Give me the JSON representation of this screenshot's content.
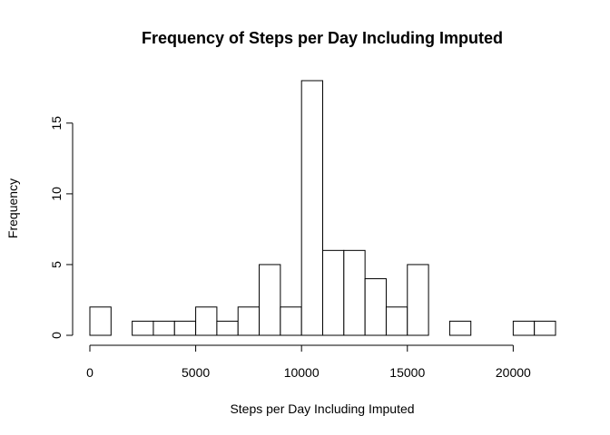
{
  "chart_data": {
    "type": "bar",
    "title": "Frequency of Steps per Day Including Imputed",
    "xlabel": "Steps per Day Including Imputed",
    "ylabel": "Frequency",
    "bin_width": 1000,
    "bins": [
      {
        "start": 0,
        "end": 1000,
        "count": 2
      },
      {
        "start": 1000,
        "end": 2000,
        "count": 0
      },
      {
        "start": 2000,
        "end": 3000,
        "count": 1
      },
      {
        "start": 3000,
        "end": 4000,
        "count": 1
      },
      {
        "start": 4000,
        "end": 5000,
        "count": 1
      },
      {
        "start": 5000,
        "end": 6000,
        "count": 2
      },
      {
        "start": 6000,
        "end": 7000,
        "count": 1
      },
      {
        "start": 7000,
        "end": 8000,
        "count": 2
      },
      {
        "start": 8000,
        "end": 9000,
        "count": 5
      },
      {
        "start": 9000,
        "end": 10000,
        "count": 2
      },
      {
        "start": 10000,
        "end": 11000,
        "count": 18
      },
      {
        "start": 11000,
        "end": 12000,
        "count": 6
      },
      {
        "start": 12000,
        "end": 13000,
        "count": 6
      },
      {
        "start": 13000,
        "end": 14000,
        "count": 4
      },
      {
        "start": 14000,
        "end": 15000,
        "count": 2
      },
      {
        "start": 15000,
        "end": 16000,
        "count": 5
      },
      {
        "start": 16000,
        "end": 17000,
        "count": 0
      },
      {
        "start": 17000,
        "end": 18000,
        "count": 1
      },
      {
        "start": 18000,
        "end": 19000,
        "count": 0
      },
      {
        "start": 19000,
        "end": 20000,
        "count": 0
      },
      {
        "start": 20000,
        "end": 21000,
        "count": 1
      },
      {
        "start": 21000,
        "end": 22000,
        "count": 1
      }
    ],
    "xlim": [
      0,
      22000
    ],
    "ylim": [
      0,
      18
    ],
    "x_ticks": [
      0,
      5000,
      10000,
      15000,
      20000
    ],
    "y_ticks": [
      0,
      5,
      10,
      15
    ],
    "grid": false,
    "bar_fill": "#ffffff",
    "bar_stroke": "#000000"
  }
}
